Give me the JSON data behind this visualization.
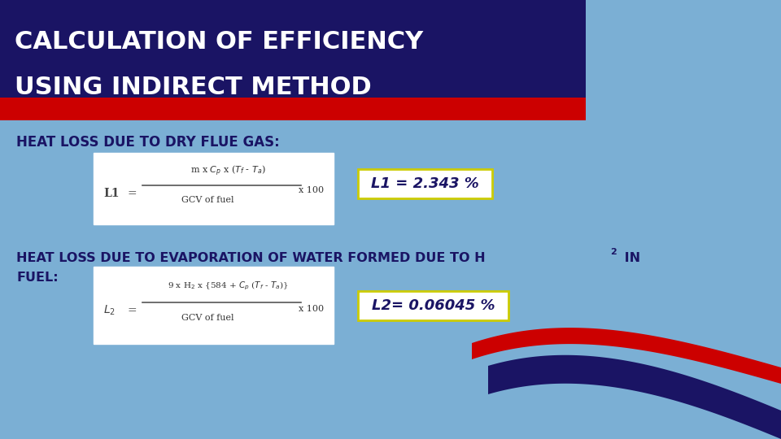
{
  "bg_color": "#7BAFD4",
  "title_line1": "CALCULATION OF EFFICIENCY",
  "title_line2": "USING INDIRECT METHOD",
  "title_bg_color": "#1a1464",
  "title_text_color": "#ffffff",
  "title_accent_color": "#cc0000",
  "section1_label": "HEAT LOSS DUE TO DRY FLUE GAS:",
  "section1_text_color": "#1a1464",
  "result1_text": "L1 = 2.343 %",
  "result1_text_color": "#1a1464",
  "result1_box_color": "#cccc00",
  "section2_line1": "HEAT LOSS DUE TO EVAPORATION OF WATER FORMED DUE TO H",
  "section2_h_sub": "2",
  "section2_line1_end": " IN",
  "section2_line2": "FUEL:",
  "section2_text_color": "#1a1464",
  "result2_text": "L2= 0.06045 %",
  "result2_text_color": "#1a1464",
  "result2_box_color": "#cccc00",
  "swoosh_red": "#cc0000",
  "swoosh_dark": "#1a1464"
}
